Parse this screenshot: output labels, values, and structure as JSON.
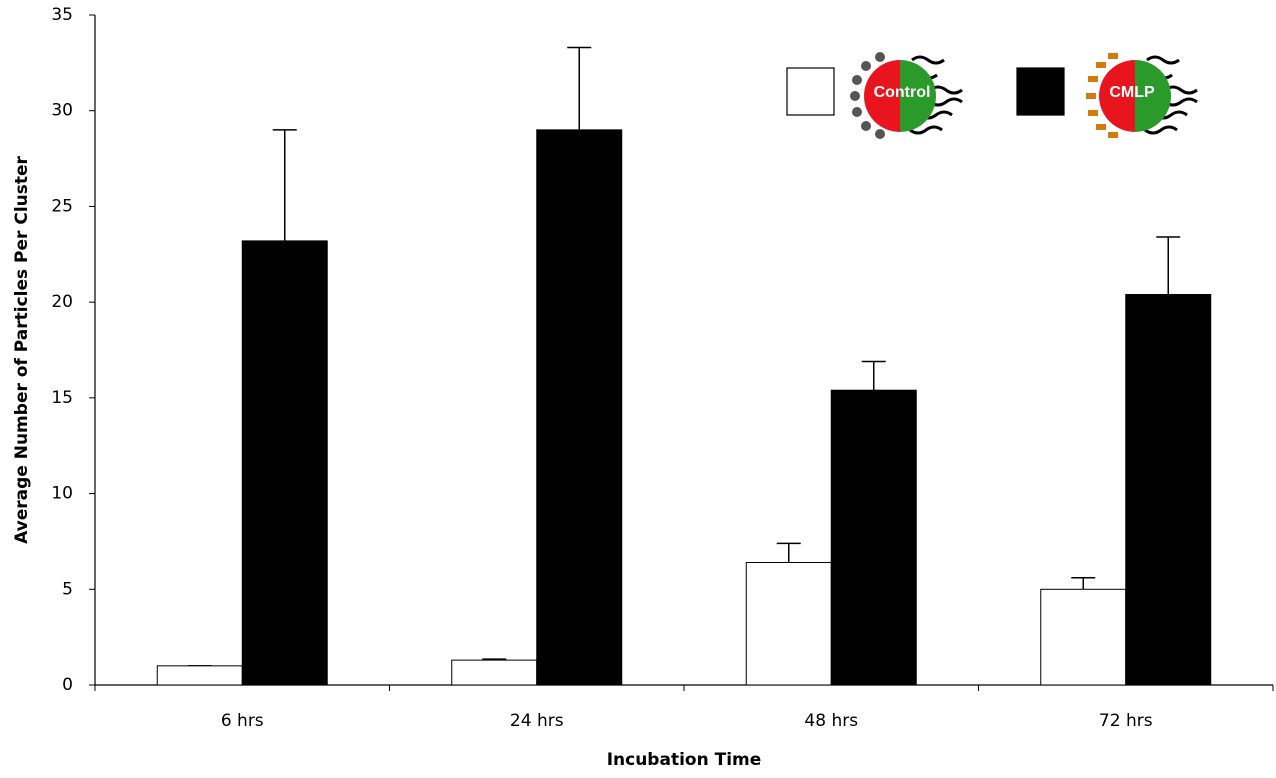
{
  "chart_data": {
    "type": "bar",
    "x_label": "Incubation Time",
    "y_label": "Average Number of Particles Per Cluster",
    "categories": [
      "6 hrs",
      "24 hrs",
      "48 hrs",
      "72 hrs"
    ],
    "series": [
      {
        "name": "Control",
        "color": "#ffffff",
        "values": [
          1.0,
          1.3,
          6.4,
          5.0
        ],
        "errors": [
          0.0,
          0.05,
          1.0,
          0.6
        ]
      },
      {
        "name": "CMLP",
        "color": "#000000",
        "values": [
          23.2,
          29.0,
          15.4,
          20.4
        ],
        "errors": [
          5.8,
          4.3,
          1.5,
          3.0
        ]
      }
    ],
    "ylim": [
      0,
      35
    ],
    "yticks": [
      0,
      5,
      10,
      15,
      20,
      25,
      30,
      35
    ],
    "grid": false
  }
}
